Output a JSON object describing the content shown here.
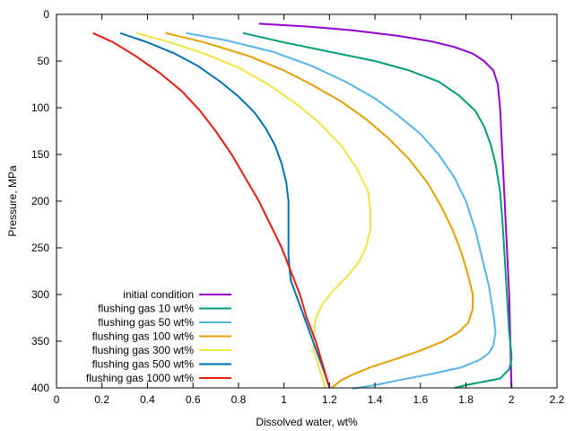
{
  "chart_data": {
    "type": "line",
    "xlabel": "Dissolved water, wt%",
    "ylabel": "Pressure, MPa",
    "xlim": [
      0,
      2.2
    ],
    "ylim": [
      0,
      400
    ],
    "y_inverted": true,
    "x_ticks": [
      0,
      0.2,
      0.4,
      0.6,
      0.8,
      1,
      1.2,
      1.4,
      1.6,
      1.8,
      2,
      2.2
    ],
    "x_tick_labels": [
      "0",
      "0.2",
      "0.4",
      "0.6",
      "0.8",
      "1",
      "1.2",
      "1.4",
      "1.6",
      "1.8",
      "2",
      "2.2"
    ],
    "y_ticks": [
      0,
      50,
      100,
      150,
      200,
      250,
      300,
      350,
      400
    ],
    "y_tick_labels": [
      "0",
      "50",
      "100",
      "150",
      "200",
      "250",
      "300",
      "350",
      "400"
    ],
    "grid": false,
    "legend_position": "bottom-left",
    "series": [
      {
        "name": "initial condition",
        "color": "#9400d3",
        "points": [
          [
            0.89,
            10
          ],
          [
            1.1,
            13
          ],
          [
            1.3,
            17
          ],
          [
            1.5,
            23
          ],
          [
            1.65,
            29
          ],
          [
            1.75,
            35
          ],
          [
            1.83,
            42
          ],
          [
            1.88,
            50
          ],
          [
            1.92,
            60
          ],
          [
            1.94,
            75
          ],
          [
            1.95,
            100
          ],
          [
            1.96,
            150
          ],
          [
            1.97,
            200
          ],
          [
            1.98,
            250
          ],
          [
            1.99,
            300
          ],
          [
            1.995,
            350
          ],
          [
            2.0,
            400
          ]
        ]
      },
      {
        "name": "flushing gas 10 wt%",
        "color": "#009e73",
        "points": [
          [
            0.82,
            20
          ],
          [
            1.0,
            30
          ],
          [
            1.2,
            40
          ],
          [
            1.4,
            50
          ],
          [
            1.55,
            60
          ],
          [
            1.68,
            72
          ],
          [
            1.77,
            87
          ],
          [
            1.84,
            103
          ],
          [
            1.88,
            120
          ],
          [
            1.91,
            140
          ],
          [
            1.93,
            160
          ],
          [
            1.95,
            190
          ],
          [
            1.96,
            220
          ],
          [
            1.97,
            260
          ],
          [
            1.98,
            300
          ],
          [
            1.99,
            340
          ],
          [
            2.0,
            365
          ],
          [
            2.0,
            370
          ],
          [
            1.99,
            380
          ],
          [
            1.95,
            390
          ],
          [
            1.8,
            397
          ],
          [
            1.75,
            400
          ]
        ]
      },
      {
        "name": "flushing gas 50 wt%",
        "color": "#56b4e9",
        "points": [
          [
            0.57,
            20
          ],
          [
            0.75,
            28
          ],
          [
            0.95,
            40
          ],
          [
            1.12,
            55
          ],
          [
            1.27,
            72
          ],
          [
            1.4,
            90
          ],
          [
            1.5,
            108
          ],
          [
            1.6,
            128
          ],
          [
            1.68,
            150
          ],
          [
            1.75,
            175
          ],
          [
            1.8,
            200
          ],
          [
            1.84,
            230
          ],
          [
            1.87,
            260
          ],
          [
            1.9,
            290
          ],
          [
            1.92,
            320
          ],
          [
            1.93,
            340
          ],
          [
            1.92,
            355
          ],
          [
            1.9,
            363
          ],
          [
            1.86,
            370
          ],
          [
            1.78,
            378
          ],
          [
            1.65,
            385
          ],
          [
            1.5,
            392
          ],
          [
            1.4,
            397
          ],
          [
            1.3,
            401
          ]
        ]
      },
      {
        "name": "flushing gas 100 wt%",
        "color": "#e69f00",
        "points": [
          [
            0.48,
            20
          ],
          [
            0.65,
            30
          ],
          [
            0.85,
            45
          ],
          [
            1.0,
            60
          ],
          [
            1.12,
            75
          ],
          [
            1.25,
            93
          ],
          [
            1.36,
            112
          ],
          [
            1.46,
            133
          ],
          [
            1.55,
            155
          ],
          [
            1.63,
            180
          ],
          [
            1.69,
            205
          ],
          [
            1.74,
            230
          ],
          [
            1.78,
            255
          ],
          [
            1.81,
            280
          ],
          [
            1.83,
            300
          ],
          [
            1.83,
            315
          ],
          [
            1.81,
            330
          ],
          [
            1.77,
            340
          ],
          [
            1.7,
            350
          ],
          [
            1.6,
            360
          ],
          [
            1.48,
            370
          ],
          [
            1.38,
            378
          ],
          [
            1.3,
            386
          ],
          [
            1.25,
            392
          ],
          [
            1.21,
            400
          ]
        ]
      },
      {
        "name": "flushing gas 300 wt%",
        "color": "#f0e442",
        "points": [
          [
            0.35,
            20
          ],
          [
            0.5,
            30
          ],
          [
            0.65,
            42
          ],
          [
            0.8,
            57
          ],
          [
            0.93,
            75
          ],
          [
            1.05,
            95
          ],
          [
            1.15,
            115
          ],
          [
            1.25,
            140
          ],
          [
            1.32,
            165
          ],
          [
            1.37,
            190
          ],
          [
            1.38,
            210
          ],
          [
            1.38,
            230
          ],
          [
            1.36,
            250
          ],
          [
            1.33,
            265
          ],
          [
            1.28,
            280
          ],
          [
            1.22,
            295
          ],
          [
            1.17,
            310
          ],
          [
            1.14,
            325
          ],
          [
            1.13,
            345
          ],
          [
            1.13,
            360
          ],
          [
            1.15,
            375
          ],
          [
            1.17,
            390
          ],
          [
            1.18,
            400
          ]
        ]
      },
      {
        "name": "flushing gas 500 wt%",
        "color": "#0072b2",
        "points": [
          [
            0.28,
            20
          ],
          [
            0.4,
            30
          ],
          [
            0.52,
            42
          ],
          [
            0.62,
            55
          ],
          [
            0.72,
            72
          ],
          [
            0.8,
            88
          ],
          [
            0.87,
            105
          ],
          [
            0.92,
            122
          ],
          [
            0.96,
            140
          ],
          [
            0.99,
            160
          ],
          [
            1.01,
            180
          ],
          [
            1.02,
            200
          ],
          [
            1.02,
            230
          ],
          [
            1.02,
            260
          ],
          [
            1.03,
            285
          ],
          [
            1.06,
            305
          ],
          [
            1.09,
            325
          ],
          [
            1.12,
            345
          ],
          [
            1.15,
            365
          ],
          [
            1.18,
            385
          ],
          [
            1.2,
            400
          ]
        ]
      },
      {
        "name": "flushing gas 1000 wt%",
        "color": "#e51e10",
        "points": [
          [
            0.16,
            20
          ],
          [
            0.25,
            30
          ],
          [
            0.35,
            45
          ],
          [
            0.45,
            62
          ],
          [
            0.55,
            82
          ],
          [
            0.63,
            103
          ],
          [
            0.7,
            125
          ],
          [
            0.77,
            150
          ],
          [
            0.83,
            175
          ],
          [
            0.89,
            200
          ],
          [
            0.94,
            225
          ],
          [
            0.99,
            250
          ],
          [
            1.03,
            275
          ],
          [
            1.07,
            300
          ],
          [
            1.1,
            325
          ],
          [
            1.14,
            350
          ],
          [
            1.17,
            375
          ],
          [
            1.2,
            400
          ]
        ]
      }
    ]
  }
}
